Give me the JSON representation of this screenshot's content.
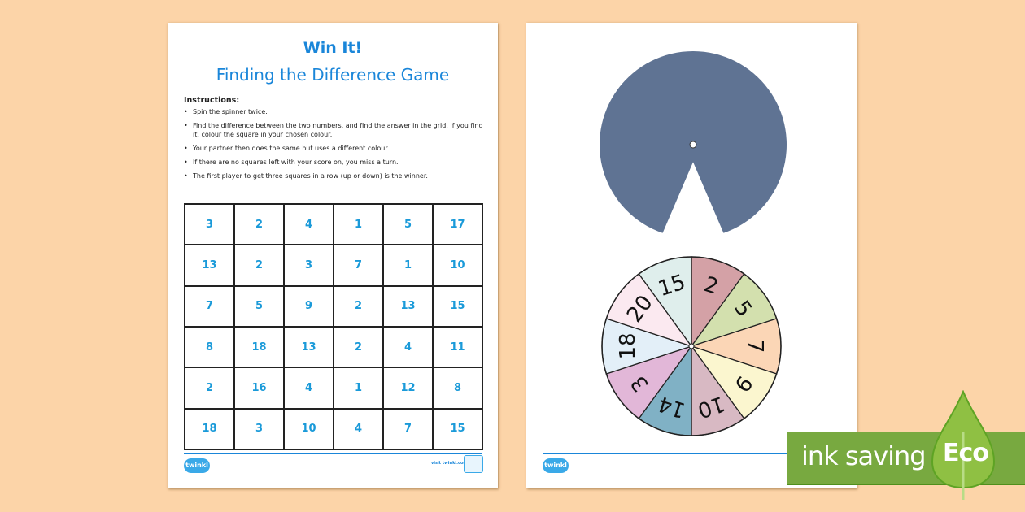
{
  "page1": {
    "title": "Win It!",
    "subtitle": "Finding the Difference Game",
    "instructions_heading": "Instructions:",
    "instructions": [
      "Spin the spinner twice.",
      "Find the difference between the two numbers, and find the answer in the grid. If you find it, colour the square in your chosen colour.",
      "Your partner then does the same but uses a different colour.",
      "If there are no squares left with your score on, you miss a turn.",
      "The first player to get three squares in a row (up or down) is the winner."
    ],
    "grid": [
      [
        "3",
        "2",
        "4",
        "1",
        "5",
        "17"
      ],
      [
        "13",
        "2",
        "3",
        "7",
        "1",
        "10"
      ],
      [
        "7",
        "5",
        "9",
        "2",
        "13",
        "15"
      ],
      [
        "8",
        "18",
        "13",
        "2",
        "4",
        "11"
      ],
      [
        "2",
        "16",
        "4",
        "1",
        "12",
        "8"
      ],
      [
        "18",
        "3",
        "10",
        "4",
        "7",
        "15"
      ]
    ],
    "footer_logo": "twinkl",
    "footer_url": "visit twinkl.com"
  },
  "page2": {
    "spinner_cover_color": "#5f7393",
    "spinner_segments": [
      {
        "label": "2",
        "color": "#d4a1a6"
      },
      {
        "label": "5",
        "color": "#d3e0ae"
      },
      {
        "label": "7",
        "color": "#fbd6b6"
      },
      {
        "label": "9",
        "color": "#fbf6cf"
      },
      {
        "label": "10",
        "color": "#d8b9c3"
      },
      {
        "label": "14",
        "color": "#80b1c5"
      },
      {
        "label": "3",
        "color": "#e2b7d8"
      },
      {
        "label": "18",
        "color": "#e3eff8"
      },
      {
        "label": "20",
        "color": "#fbe9f0"
      },
      {
        "label": "15",
        "color": "#dfeeec"
      }
    ],
    "footer_logo": "twinkl"
  },
  "eco_badge": {
    "text": "ink saving",
    "label": "Eco",
    "color": "#78a940"
  }
}
